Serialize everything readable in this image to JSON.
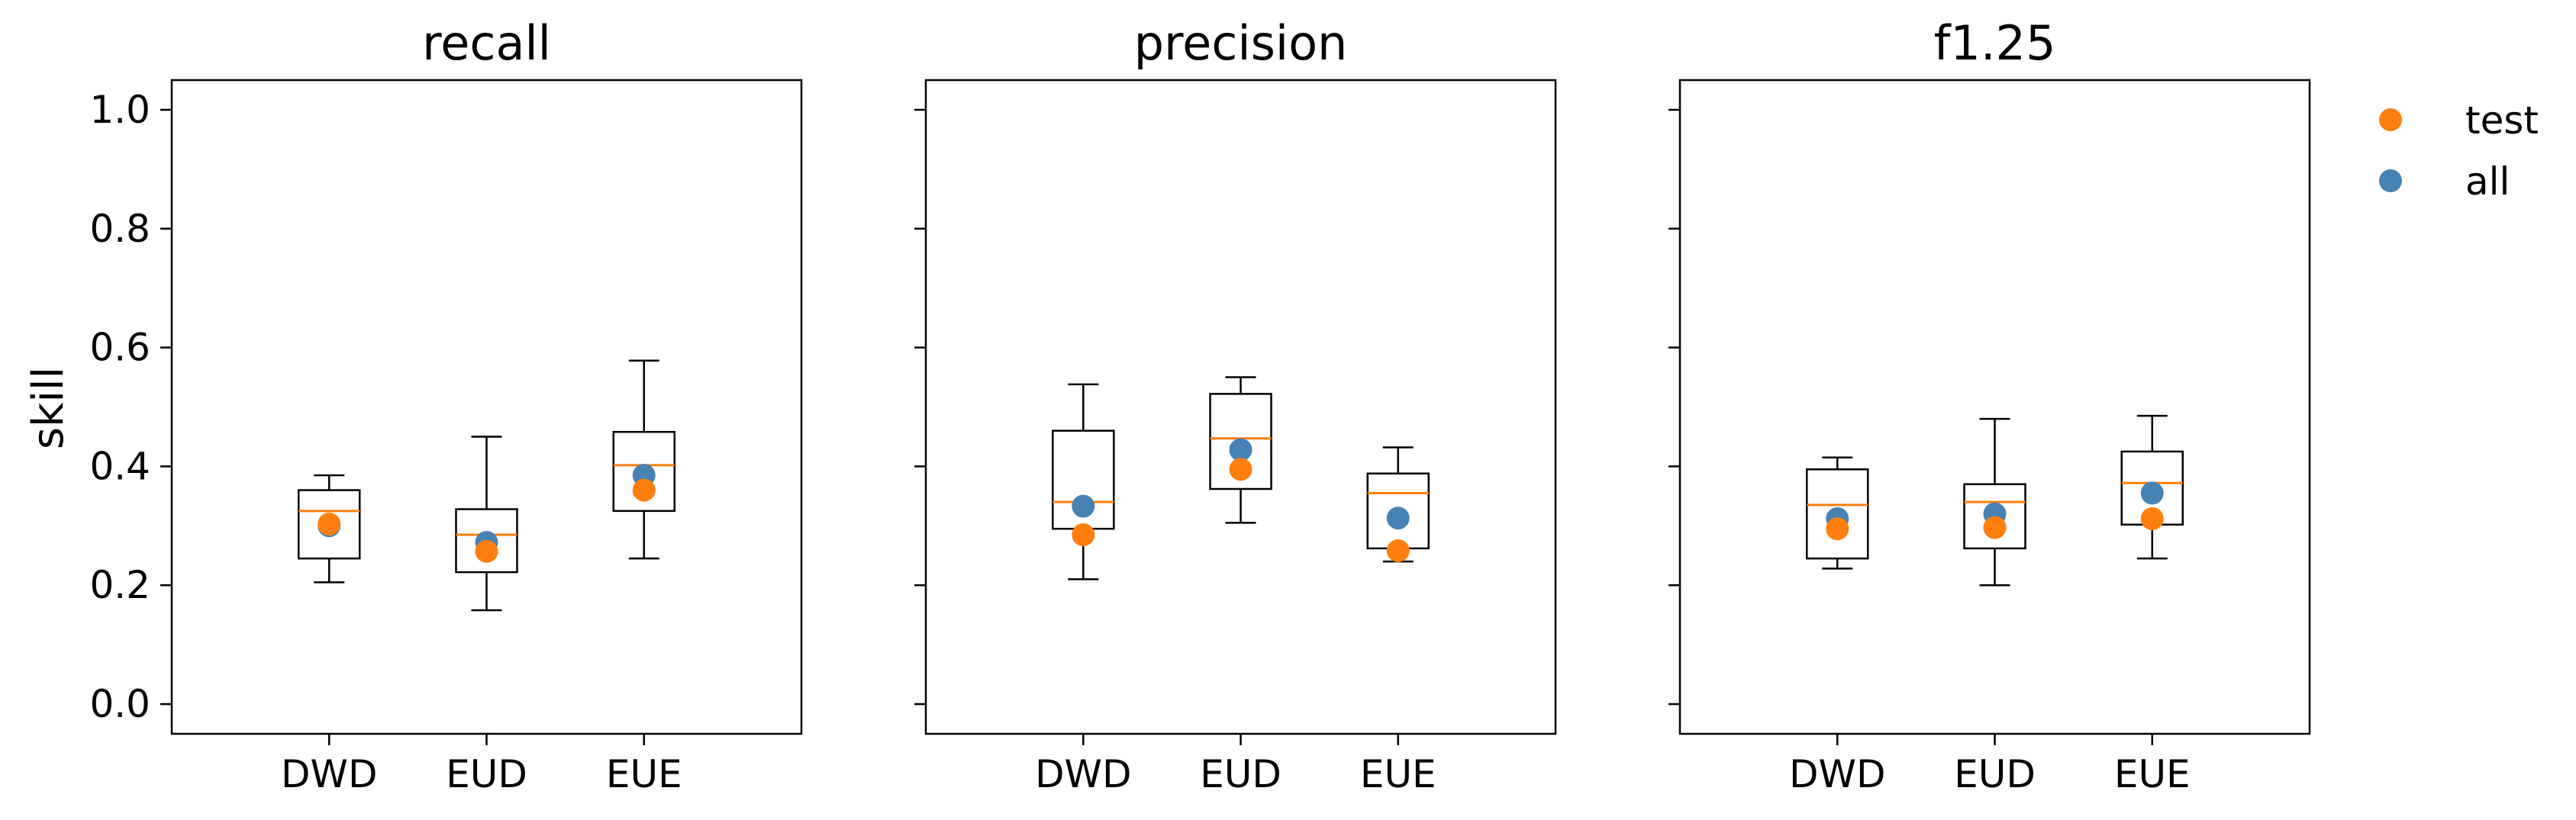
{
  "chart_data": [
    {
      "type": "box",
      "title": "recall",
      "ylabel": "skill",
      "ylim": [
        -0.05,
        1.05
      ],
      "yticks": [
        0.0,
        0.2,
        0.4,
        0.6,
        0.8,
        1.0
      ],
      "ytick_labels": [
        "0.0",
        "0.2",
        "0.4",
        "0.6",
        "0.8",
        "1.0"
      ],
      "categories": [
        "DWD",
        "EUD",
        "EUE"
      ],
      "boxes": [
        {
          "whisker_low": 0.205,
          "q1": 0.245,
          "median": 0.325,
          "q3": 0.36,
          "whisker_high": 0.385
        },
        {
          "whisker_low": 0.158,
          "q1": 0.222,
          "median": 0.285,
          "q3": 0.328,
          "whisker_high": 0.45
        },
        {
          "whisker_low": 0.245,
          "q1": 0.325,
          "median": 0.402,
          "q3": 0.458,
          "whisker_high": 0.578
        }
      ],
      "series": [
        {
          "name": "test",
          "values": [
            0.303,
            0.257,
            0.36
          ]
        },
        {
          "name": "all",
          "values": [
            0.3,
            0.272,
            0.385
          ]
        }
      ]
    },
    {
      "type": "box",
      "title": "precision",
      "ylim": [
        -0.05,
        1.05
      ],
      "categories": [
        "DWD",
        "EUD",
        "EUE"
      ],
      "boxes": [
        {
          "whisker_low": 0.21,
          "q1": 0.295,
          "median": 0.34,
          "q3": 0.46,
          "whisker_high": 0.538
        },
        {
          "whisker_low": 0.305,
          "q1": 0.362,
          "median": 0.447,
          "q3": 0.522,
          "whisker_high": 0.55
        },
        {
          "whisker_low": 0.24,
          "q1": 0.262,
          "median": 0.355,
          "q3": 0.388,
          "whisker_high": 0.432
        }
      ],
      "series": [
        {
          "name": "test",
          "values": [
            0.285,
            0.395,
            0.258
          ]
        },
        {
          "name": "all",
          "values": [
            0.333,
            0.428,
            0.313
          ]
        }
      ]
    },
    {
      "type": "box",
      "title": "f1.25",
      "ylim": [
        -0.05,
        1.05
      ],
      "categories": [
        "DWD",
        "EUD",
        "EUE"
      ],
      "boxes": [
        {
          "whisker_low": 0.228,
          "q1": 0.245,
          "median": 0.335,
          "q3": 0.395,
          "whisker_high": 0.415
        },
        {
          "whisker_low": 0.2,
          "q1": 0.262,
          "median": 0.34,
          "q3": 0.37,
          "whisker_high": 0.48
        },
        {
          "whisker_low": 0.245,
          "q1": 0.302,
          "median": 0.372,
          "q3": 0.425,
          "whisker_high": 0.485
        }
      ],
      "series": [
        {
          "name": "test",
          "values": [
            0.295,
            0.297,
            0.312
          ]
        },
        {
          "name": "all",
          "values": [
            0.312,
            0.32,
            0.355
          ]
        }
      ]
    }
  ],
  "legend": {
    "placement": "right",
    "items": [
      {
        "label": "test",
        "color": "#ff7f0e"
      },
      {
        "label": "all",
        "color": "#4682b4"
      }
    ]
  },
  "colors": {
    "test": "#ff7f0e",
    "all": "#4682b4",
    "median": "#ff7f0e",
    "box": "#000000"
  }
}
